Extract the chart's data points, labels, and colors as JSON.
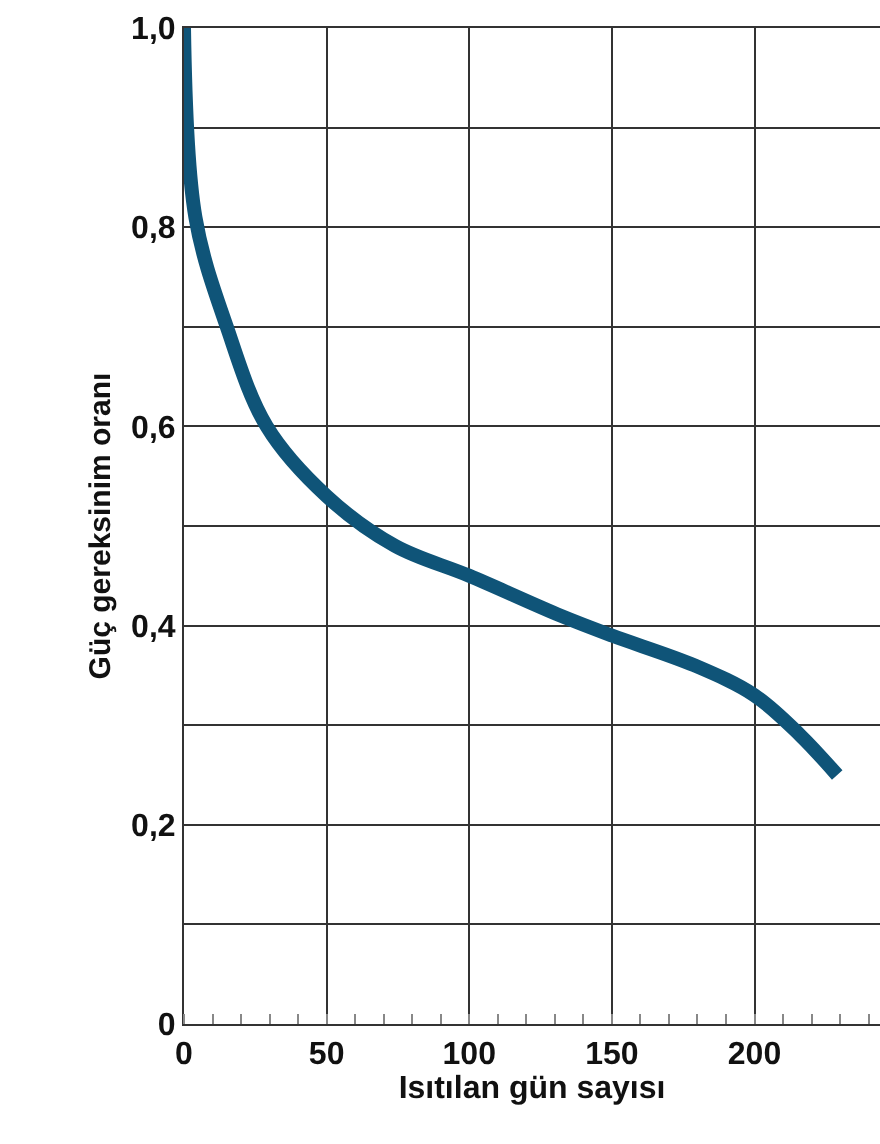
{
  "chart_data": {
    "type": "line",
    "xlabel": "Isıtılan gün sayısı",
    "ylabel": "Güç gereksinim oranı",
    "x": [
      0,
      4,
      15,
      29,
      50,
      74,
      100,
      132,
      150,
      179,
      200,
      216,
      229
    ],
    "series": [
      {
        "color": "#0f5478",
        "values": [
          1.0,
          0.81,
          0.7,
          0.6,
          0.53,
          0.48,
          0.45,
          0.41,
          0.39,
          0.36,
          0.33,
          0.29,
          0.25
        ]
      }
    ],
    "xlim": [
      0,
      244
    ],
    "ylim": [
      0,
      1.0
    ],
    "xticks": [
      0,
      50,
      100,
      150,
      200
    ],
    "yticks": [
      {
        "value": 0,
        "label": "0"
      },
      {
        "value": 0.1,
        "label": null
      },
      {
        "value": 0.2,
        "label": "0,2"
      },
      {
        "value": 0.3,
        "label": null
      },
      {
        "value": 0.4,
        "label": "0,4"
      },
      {
        "value": 0.5,
        "label": null
      },
      {
        "value": 0.6,
        "label": "0,6"
      },
      {
        "value": 0.7,
        "label": null
      },
      {
        "value": 0.8,
        "label": "0,8"
      },
      {
        "value": 0.9,
        "label": null
      },
      {
        "value": 1.0,
        "label": "1,0"
      }
    ],
    "grid": true,
    "legend": false,
    "marker": "none",
    "line_style": "solid"
  }
}
